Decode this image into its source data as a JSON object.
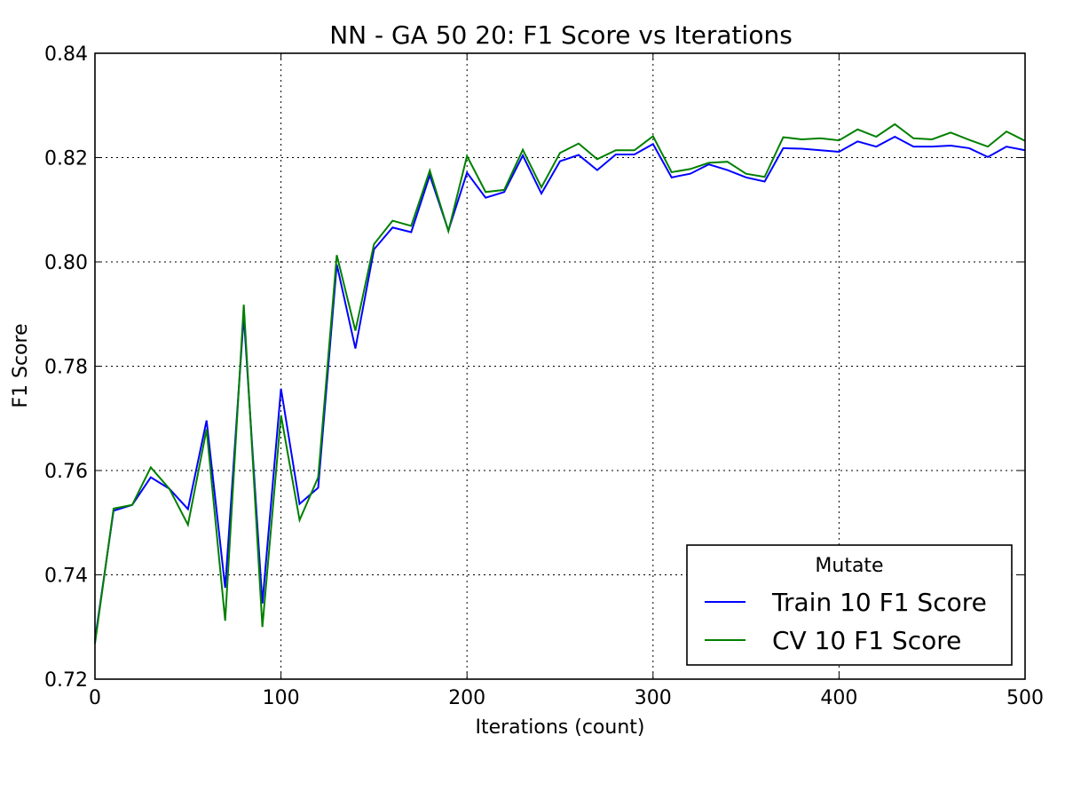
{
  "chart_data": {
    "type": "line",
    "title": "NN - GA 50 20: F1 Score vs Iterations",
    "xlabel": "Iterations (count)",
    "ylabel": "F1 Score",
    "xlim": [
      0,
      500
    ],
    "ylim": [
      0.72,
      0.84
    ],
    "xticks": [
      0,
      100,
      200,
      300,
      400,
      500
    ],
    "xtick_labels": [
      "0",
      "100",
      "200",
      "300",
      "400",
      "500"
    ],
    "yticks": [
      0.72,
      0.74,
      0.76,
      0.78,
      0.8,
      0.82,
      0.84
    ],
    "ytick_labels": [
      "0.72",
      "0.74",
      "0.76",
      "0.78",
      "0.80",
      "0.82",
      "0.84"
    ],
    "grid": true,
    "legend": {
      "title": "Mutate",
      "position": "lower-right"
    },
    "x": [
      0,
      10,
      20,
      30,
      40,
      50,
      60,
      70,
      80,
      90,
      100,
      110,
      120,
      130,
      140,
      150,
      160,
      170,
      180,
      190,
      200,
      210,
      220,
      230,
      240,
      250,
      260,
      270,
      280,
      290,
      300,
      310,
      320,
      330,
      340,
      350,
      360,
      370,
      380,
      390,
      400,
      410,
      420,
      430,
      440,
      450,
      460,
      470,
      480,
      490,
      500
    ],
    "series": [
      {
        "name": "Train 10 F1 Score",
        "color": "#0000ff",
        "values": [
          0.7275,
          0.7523,
          0.7534,
          0.7587,
          0.7565,
          0.7526,
          0.7696,
          0.7375,
          0.7897,
          0.7345,
          0.7757,
          0.7536,
          0.7567,
          0.7995,
          0.7834,
          0.8024,
          0.8066,
          0.8057,
          0.8166,
          0.806,
          0.8171,
          0.8123,
          0.8134,
          0.8204,
          0.8131,
          0.8193,
          0.8205,
          0.8176,
          0.8206,
          0.8206,
          0.8226,
          0.8162,
          0.8169,
          0.8187,
          0.8176,
          0.8162,
          0.8154,
          0.8218,
          0.8217,
          0.8214,
          0.8211,
          0.8231,
          0.8221,
          0.824,
          0.8221,
          0.8221,
          0.8223,
          0.8218,
          0.8201,
          0.8221,
          0.8214
        ]
      },
      {
        "name": "CV 10 F1 Score",
        "color": "#008000",
        "values": [
          0.7268,
          0.7527,
          0.7534,
          0.7606,
          0.7565,
          0.7496,
          0.7679,
          0.7312,
          0.7918,
          0.73,
          0.7706,
          0.7505,
          0.7587,
          0.8013,
          0.7868,
          0.8034,
          0.8079,
          0.8069,
          0.8175,
          0.8059,
          0.8203,
          0.8134,
          0.8138,
          0.8215,
          0.8143,
          0.8209,
          0.8227,
          0.8197,
          0.8214,
          0.8214,
          0.8241,
          0.8172,
          0.8178,
          0.819,
          0.8192,
          0.8169,
          0.8163,
          0.8239,
          0.8235,
          0.8237,
          0.8233,
          0.8254,
          0.824,
          0.8264,
          0.8237,
          0.8235,
          0.8248,
          0.8234,
          0.8221,
          0.825,
          0.8232
        ]
      }
    ]
  }
}
